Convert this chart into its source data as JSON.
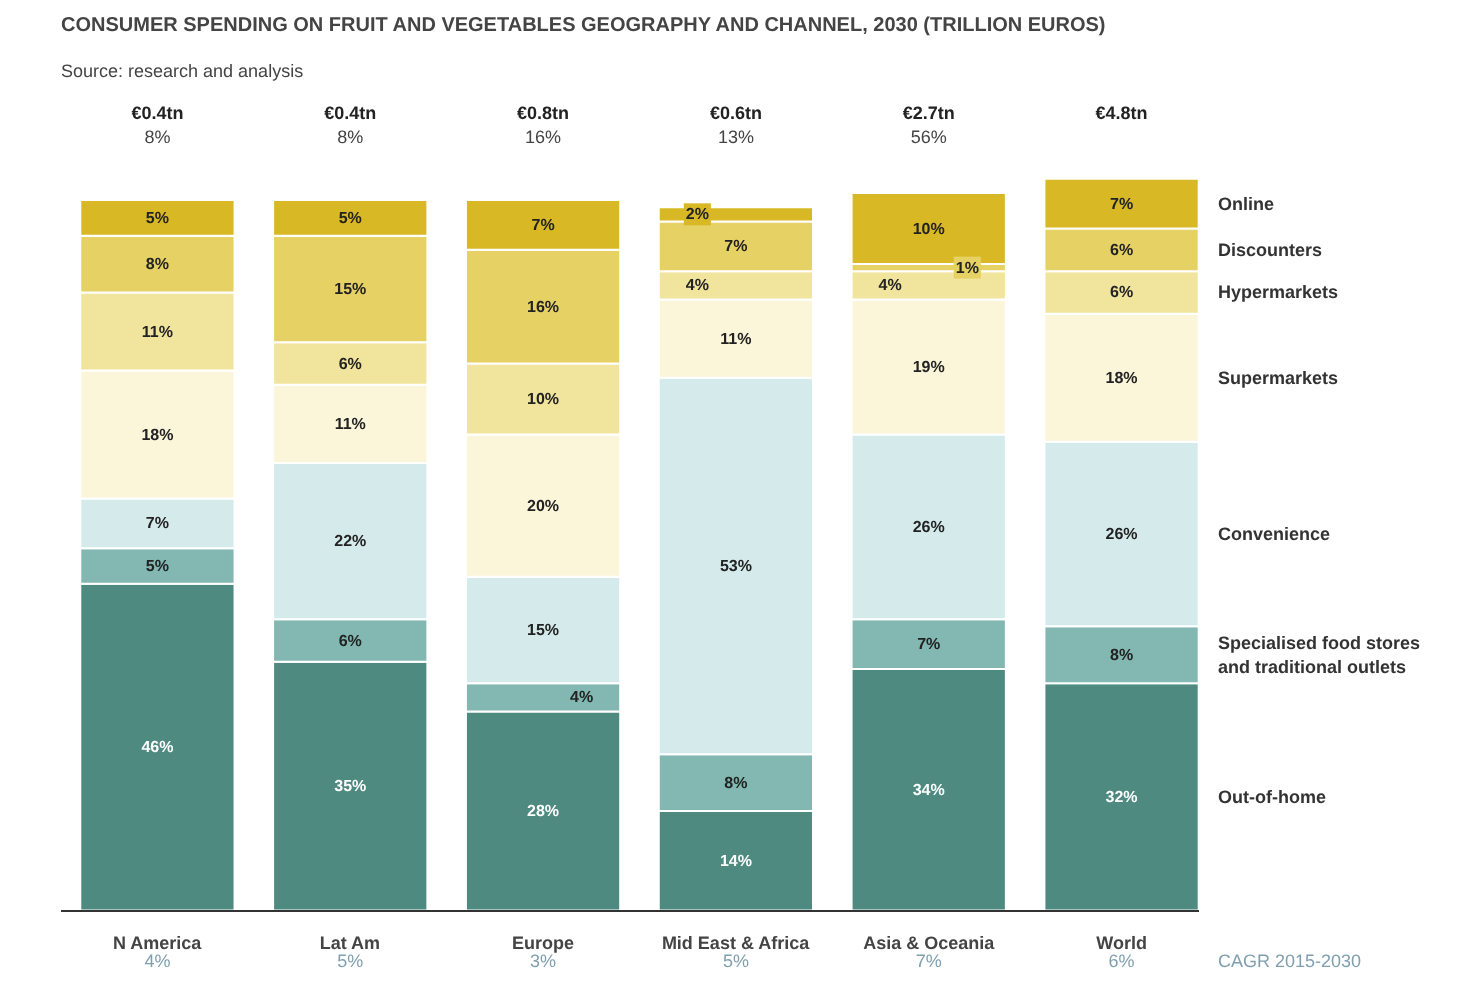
{
  "chart_data": {
    "type": "bar",
    "stacked": true,
    "title": "CONSUMER SPENDING ON FRUIT AND VEGETABLES GEOGRAPHY AND CHANNEL, 2030 (TRILLION EUROS)",
    "subtitle": "Source: research and analysis",
    "categories": [
      "N America",
      "Lat Am",
      "Europe",
      "Mid East & Africa",
      "Asia & Oceania",
      "World"
    ],
    "series": [
      {
        "name": "Out-of-home",
        "color": "#4e8a80",
        "values": [
          46,
          35,
          28,
          14,
          34,
          32
        ],
        "value_labels": [
          "46%",
          "35%",
          "28%",
          "14%",
          "34%",
          "32%"
        ]
      },
      {
        "name": "Specialised food stores and traditional outlets",
        "color": "#82b8b1",
        "values": [
          5,
          6,
          4,
          8,
          7,
          8
        ],
        "value_labels": [
          "5%",
          "6%",
          "4%",
          "8%",
          "7%",
          "8%"
        ]
      },
      {
        "name": "Convenience",
        "color": "#d5eaeb",
        "values": [
          7,
          22,
          15,
          53,
          26,
          26
        ],
        "value_labels": [
          "7%",
          "22%",
          "15%",
          "53%",
          "26%",
          "26%"
        ]
      },
      {
        "name": "Supermarkets",
        "color": "#fbf5da",
        "values": [
          18,
          11,
          20,
          11,
          19,
          18
        ],
        "value_labels": [
          "18%",
          "11%",
          "20%",
          "11%",
          "19%",
          "18%"
        ]
      },
      {
        "name": "Hypermarkets",
        "color": "#f1e49c",
        "values": [
          11,
          6,
          10,
          4,
          4,
          6
        ],
        "value_labels": [
          "11%",
          "6%",
          "10%",
          "4%",
          "4%",
          "6%"
        ]
      },
      {
        "name": "Discounters",
        "color": "#e6d165",
        "values": [
          8,
          15,
          16,
          7,
          1,
          6
        ],
        "value_labels": [
          "8%",
          "15%",
          "16%",
          "7%",
          "1%",
          "6%"
        ]
      },
      {
        "name": "Online",
        "color": "#d8b824",
        "values": [
          5,
          5,
          7,
          2,
          10,
          7
        ],
        "value_labels": [
          "5%",
          "5%",
          "7%",
          "2%",
          "10%",
          "7%"
        ]
      }
    ],
    "annotations": [
      "€0.4tn",
      "8%",
      "€0.4tn",
      "8%",
      "€0.8tn",
      "16%",
      "€0.6tn",
      "13%",
      "€2.7tn",
      "56%",
      "€4.8tn",
      "4%",
      "5%",
      "3%",
      "5%",
      "7%",
      "6%",
      "CAGR 2015-2030"
    ]
  }
}
